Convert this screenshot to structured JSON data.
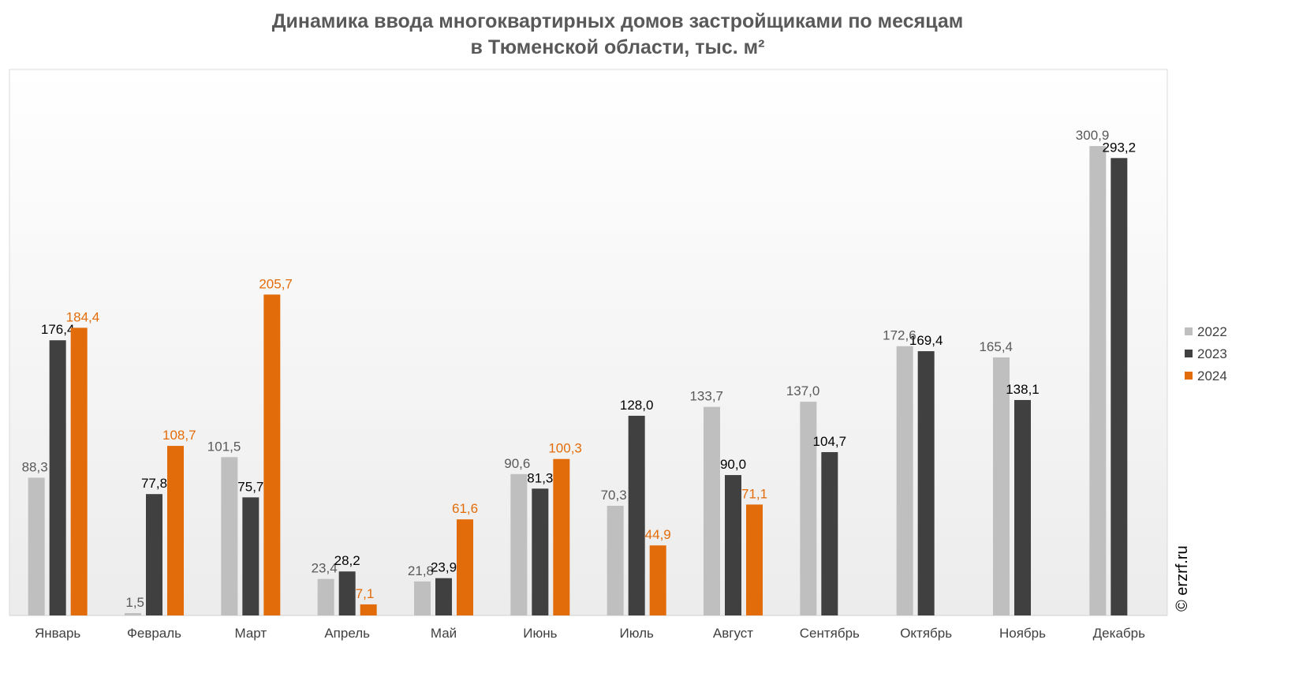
{
  "chart_data": {
    "type": "bar",
    "title": [
      "Динамика ввода многоквартирных домов застройщиками по месяцам",
      "в Тюменской области, тыс. м²"
    ],
    "categories": [
      "Январь",
      "Февраль",
      "Март",
      "Апрель",
      "Май",
      "Июнь",
      "Июль",
      "Август",
      "Сентябрь",
      "Октябрь",
      "Ноябрь",
      "Декабрь"
    ],
    "series": [
      {
        "name": "2022",
        "color": "#bfbfbf",
        "label_color": "#595959",
        "values": [
          88.3,
          1.5,
          101.5,
          23.4,
          21.8,
          90.6,
          70.3,
          133.7,
          137.0,
          172.6,
          165.4,
          300.9
        ],
        "value_labels": [
          "88,3",
          "1,5",
          "101,5",
          "23,4",
          "21,8",
          "90,6",
          "70,3",
          "133,7",
          "137,0",
          "172,6",
          "165,4",
          "300,9"
        ]
      },
      {
        "name": "2023",
        "color": "#404040",
        "label_color": "#000000",
        "values": [
          176.4,
          77.8,
          75.7,
          28.2,
          23.9,
          81.3,
          128.0,
          90.0,
          104.7,
          169.4,
          138.1,
          293.2
        ],
        "value_labels": [
          "176,4",
          "77,8",
          "75,7",
          "28,2",
          "23,9",
          "81,3",
          "128,0",
          "90,0",
          "104,7",
          "169,4",
          "138,1",
          "293,2"
        ]
      },
      {
        "name": "2024",
        "color": "#e36c0a",
        "label_color": "#e36c0a",
        "values": [
          184.4,
          108.7,
          205.7,
          7.1,
          61.6,
          100.3,
          44.9,
          71.1,
          null,
          null,
          null,
          null
        ],
        "value_labels": [
          "184,4",
          "108,7",
          "205,7",
          "7,1",
          "61,6",
          "100,3",
          "44,9",
          "71,1",
          null,
          null,
          null,
          null
        ]
      }
    ],
    "ylim": [
      0,
      350
    ],
    "legend": "right",
    "annotation": "© erzrf.ru"
  }
}
